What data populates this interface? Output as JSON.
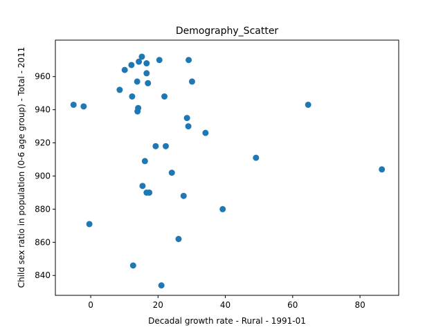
{
  "chart_data": {
    "type": "scatter",
    "title": "Demography_Scatter",
    "xlabel": "Decadal growth rate - Rural - 1991-01",
    "ylabel": "Child sex ratio in population (0-6 age group) - Total - 2011",
    "xlim": [
      -10.5,
      91.5
    ],
    "ylim": [
      828,
      982
    ],
    "xticks": [
      0,
      20,
      40,
      60,
      80
    ],
    "yticks": [
      840,
      860,
      880,
      900,
      920,
      940,
      960
    ],
    "grid": false,
    "marker_color": "#1f77b4",
    "points": [
      {
        "x": 15.2,
        "y": 972
      },
      {
        "x": 20.4,
        "y": 970
      },
      {
        "x": 29.1,
        "y": 970
      },
      {
        "x": 14.3,
        "y": 969
      },
      {
        "x": 16.6,
        "y": 968
      },
      {
        "x": 12.1,
        "y": 967
      },
      {
        "x": 10.1,
        "y": 964
      },
      {
        "x": 16.6,
        "y": 962
      },
      {
        "x": 13.8,
        "y": 957
      },
      {
        "x": 30.1,
        "y": 957
      },
      {
        "x": 17.0,
        "y": 956
      },
      {
        "x": 8.6,
        "y": 952
      },
      {
        "x": 12.3,
        "y": 948
      },
      {
        "x": 21.9,
        "y": 948
      },
      {
        "x": -5.1,
        "y": 943
      },
      {
        "x": 64.6,
        "y": 943
      },
      {
        "x": -2.1,
        "y": 942
      },
      {
        "x": 14.1,
        "y": 941
      },
      {
        "x": 13.9,
        "y": 939
      },
      {
        "x": 28.6,
        "y": 935
      },
      {
        "x": 29.0,
        "y": 930
      },
      {
        "x": 34.1,
        "y": 926
      },
      {
        "x": 19.3,
        "y": 918
      },
      {
        "x": 22.3,
        "y": 918
      },
      {
        "x": 49.1,
        "y": 911
      },
      {
        "x": 16.1,
        "y": 909
      },
      {
        "x": 86.5,
        "y": 904
      },
      {
        "x": 24.1,
        "y": 902
      },
      {
        "x": 15.4,
        "y": 894
      },
      {
        "x": 16.6,
        "y": 890
      },
      {
        "x": 17.4,
        "y": 890
      },
      {
        "x": 27.6,
        "y": 888
      },
      {
        "x": 39.2,
        "y": 880
      },
      {
        "x": -0.4,
        "y": 871
      },
      {
        "x": 26.1,
        "y": 862
      },
      {
        "x": 12.6,
        "y": 846
      },
      {
        "x": 21.0,
        "y": 834
      }
    ]
  }
}
